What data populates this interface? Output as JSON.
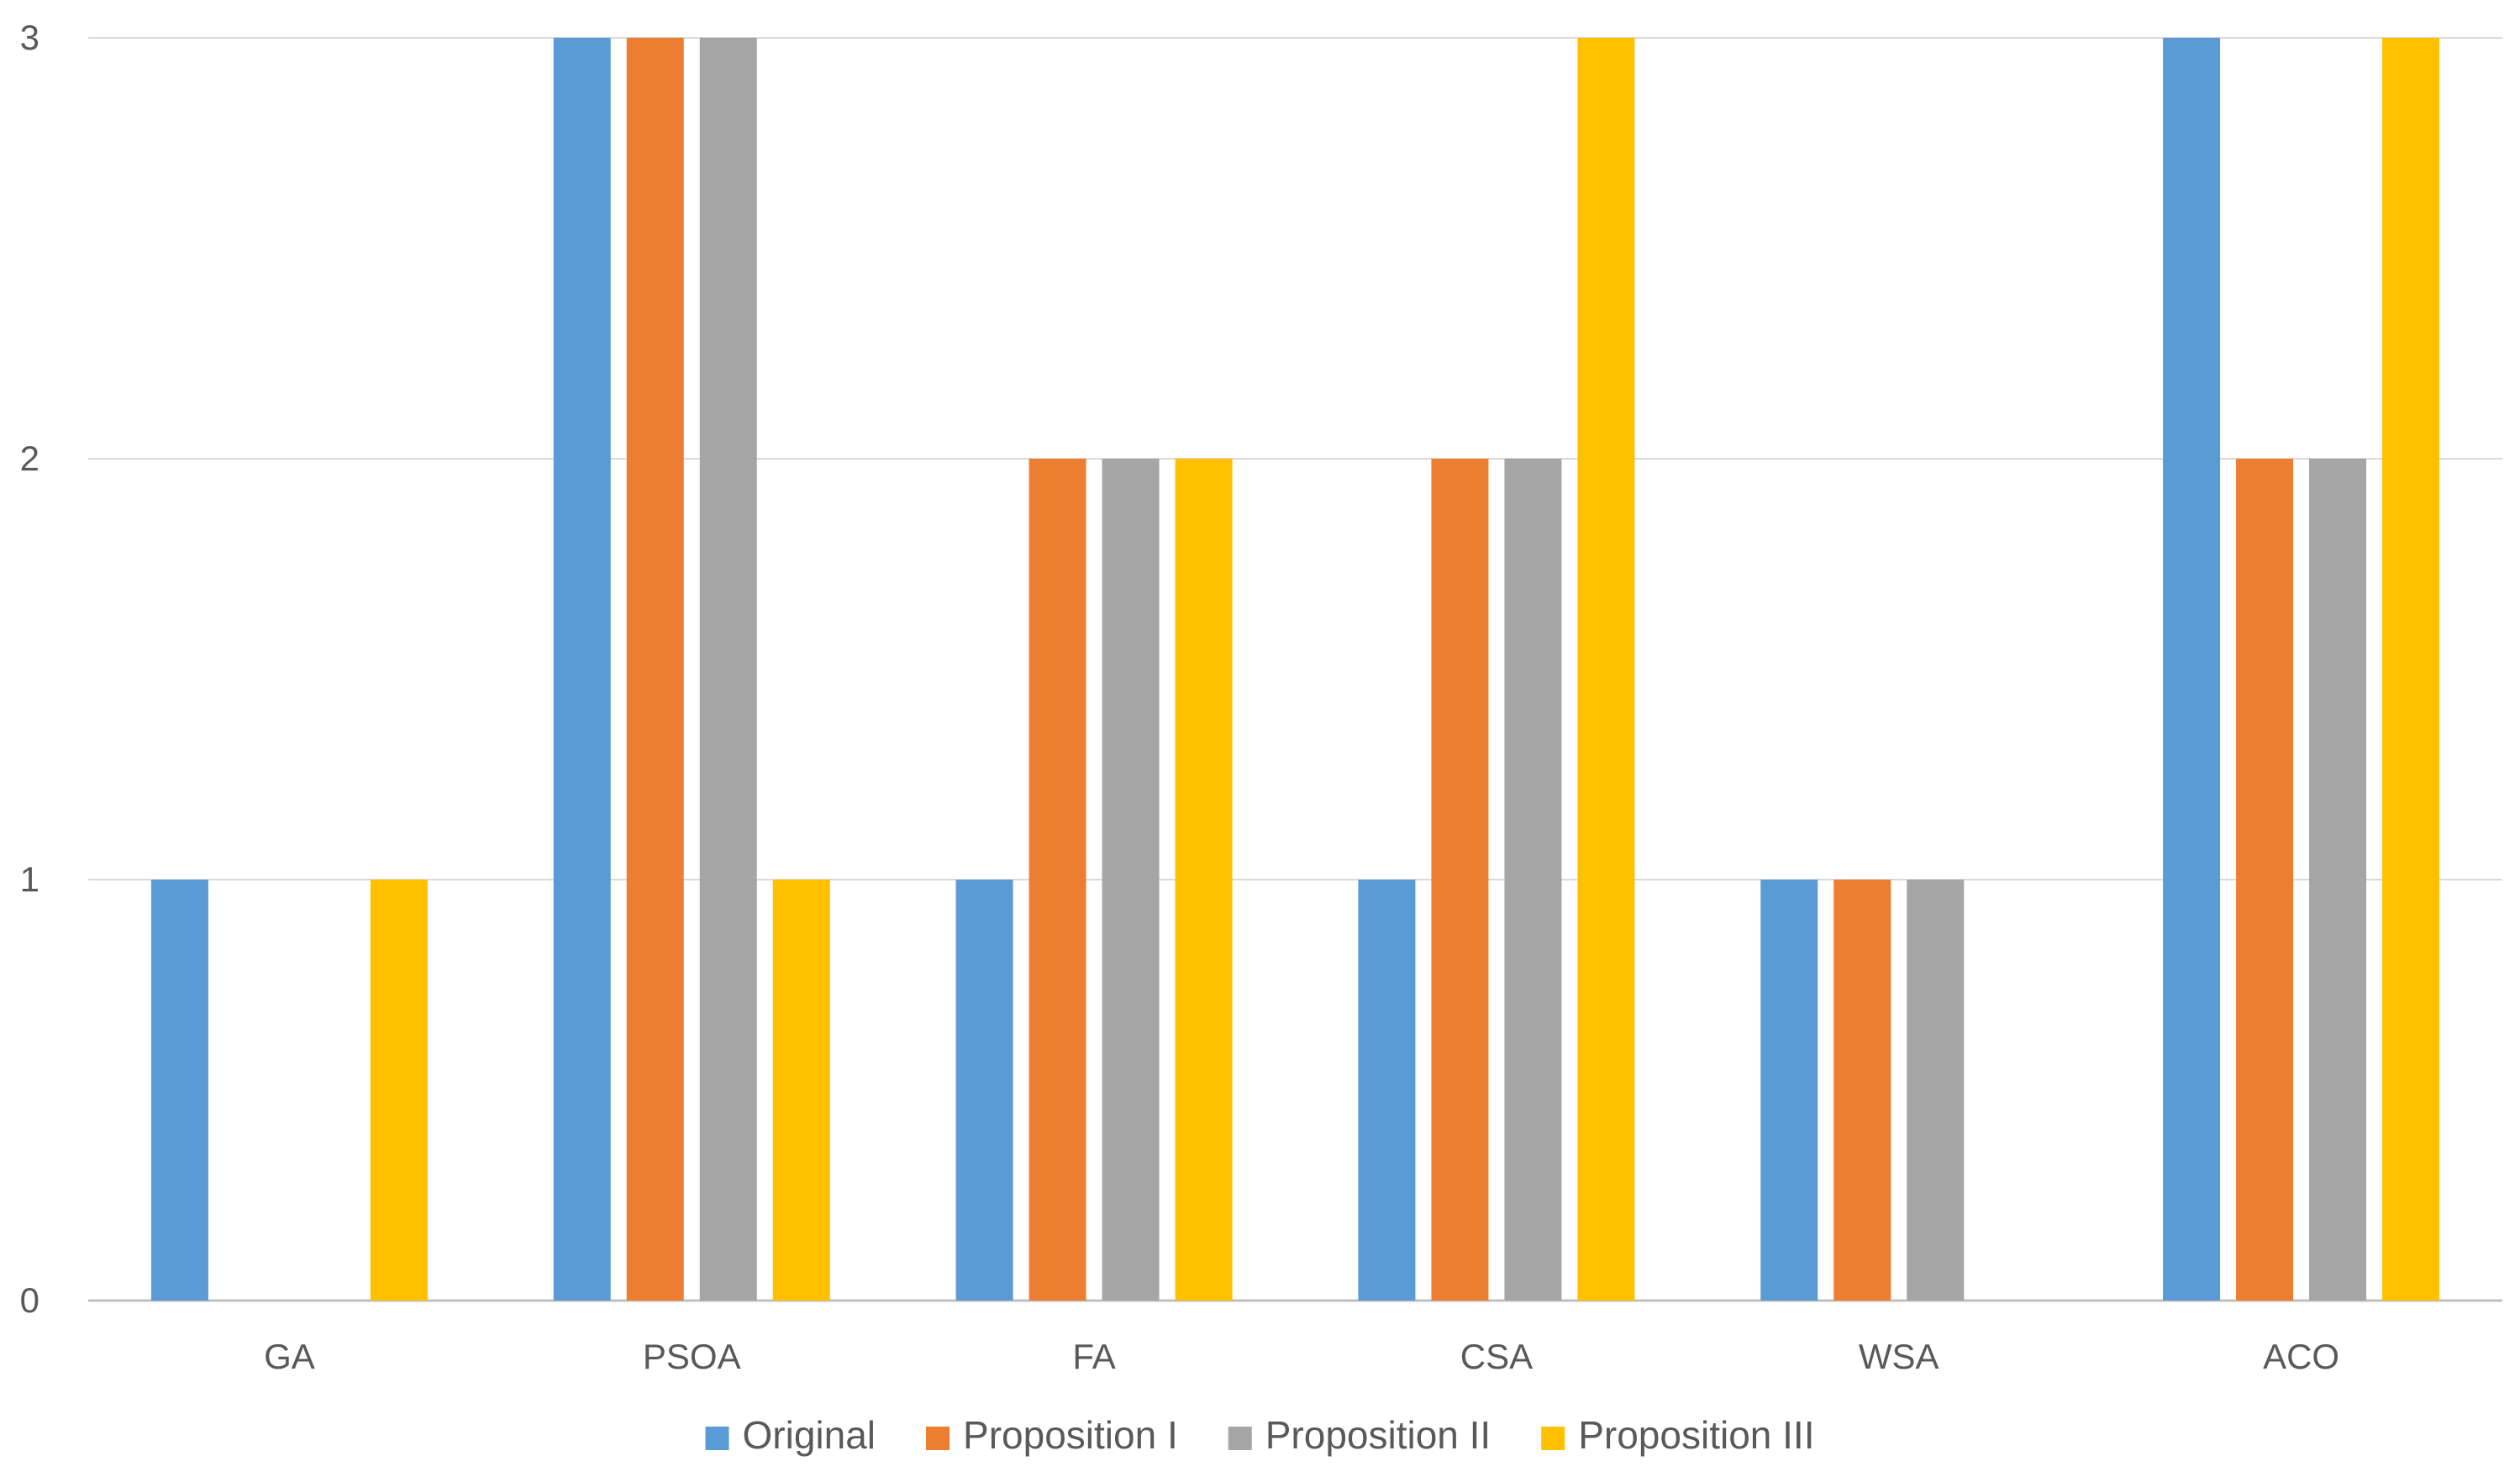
{
  "chart_data": {
    "type": "bar",
    "title": "",
    "xlabel": "",
    "ylabel": "",
    "ylim": [
      0,
      3
    ],
    "yticks": [
      0,
      1,
      2,
      3
    ],
    "grid": true,
    "legend_position": "bottom",
    "categories": [
      "GA",
      "PSOA",
      "FA",
      "CSA",
      "WSA",
      "ACO"
    ],
    "series": [
      {
        "name": "Original",
        "color": "#5B9BD5",
        "values": [
          1,
          3,
          1,
          1,
          1,
          3
        ]
      },
      {
        "name": "Proposition I",
        "color": "#ED7D31",
        "values": [
          0,
          3,
          2,
          2,
          1,
          2
        ]
      },
      {
        "name": "Proposition II",
        "color": "#A5A5A5",
        "values": [
          0,
          3,
          2,
          2,
          1,
          2
        ]
      },
      {
        "name": "Proposition III",
        "color": "#FFC000",
        "values": [
          1,
          1,
          2,
          3,
          0,
          3
        ]
      }
    ]
  }
}
